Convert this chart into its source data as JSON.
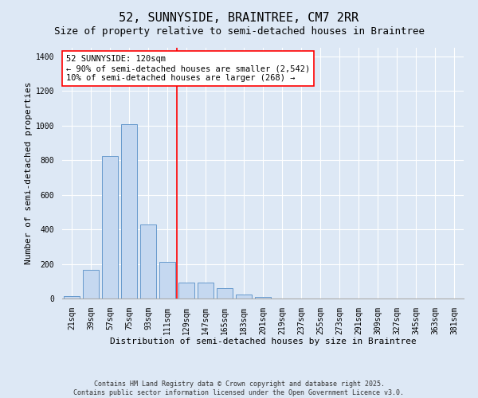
{
  "title": "52, SUNNYSIDE, BRAINTREE, CM7 2RR",
  "subtitle": "Size of property relative to semi-detached houses in Braintree",
  "xlabel": "Distribution of semi-detached houses by size in Braintree",
  "ylabel": "Number of semi-detached properties",
  "categories": [
    "21sqm",
    "39sqm",
    "57sqm",
    "75sqm",
    "93sqm",
    "111sqm",
    "129sqm",
    "147sqm",
    "165sqm",
    "183sqm",
    "201sqm",
    "219sqm",
    "237sqm",
    "255sqm",
    "273sqm",
    "291sqm",
    "309sqm",
    "327sqm",
    "345sqm",
    "363sqm",
    "381sqm"
  ],
  "values": [
    15,
    165,
    825,
    1010,
    430,
    210,
    90,
    90,
    60,
    25,
    10,
    0,
    0,
    0,
    0,
    0,
    0,
    0,
    0,
    0,
    0
  ],
  "bar_color": "#c5d8f0",
  "bar_edge_color": "#6699cc",
  "vline_x": 5.5,
  "vline_color": "red",
  "annotation_text": "52 SUNNYSIDE: 120sqm\n← 90% of semi-detached houses are smaller (2,542)\n10% of semi-detached houses are larger (268) →",
  "annotation_box_color": "white",
  "annotation_box_edge": "red",
  "background_color": "#dde8f5",
  "plot_bg_color": "#dde8f5",
  "footer_line1": "Contains HM Land Registry data © Crown copyright and database right 2025.",
  "footer_line2": "Contains public sector information licensed under the Open Government Licence v3.0.",
  "ylim": [
    0,
    1450
  ],
  "title_fontsize": 11,
  "subtitle_fontsize": 9,
  "label_fontsize": 8,
  "tick_fontsize": 7
}
